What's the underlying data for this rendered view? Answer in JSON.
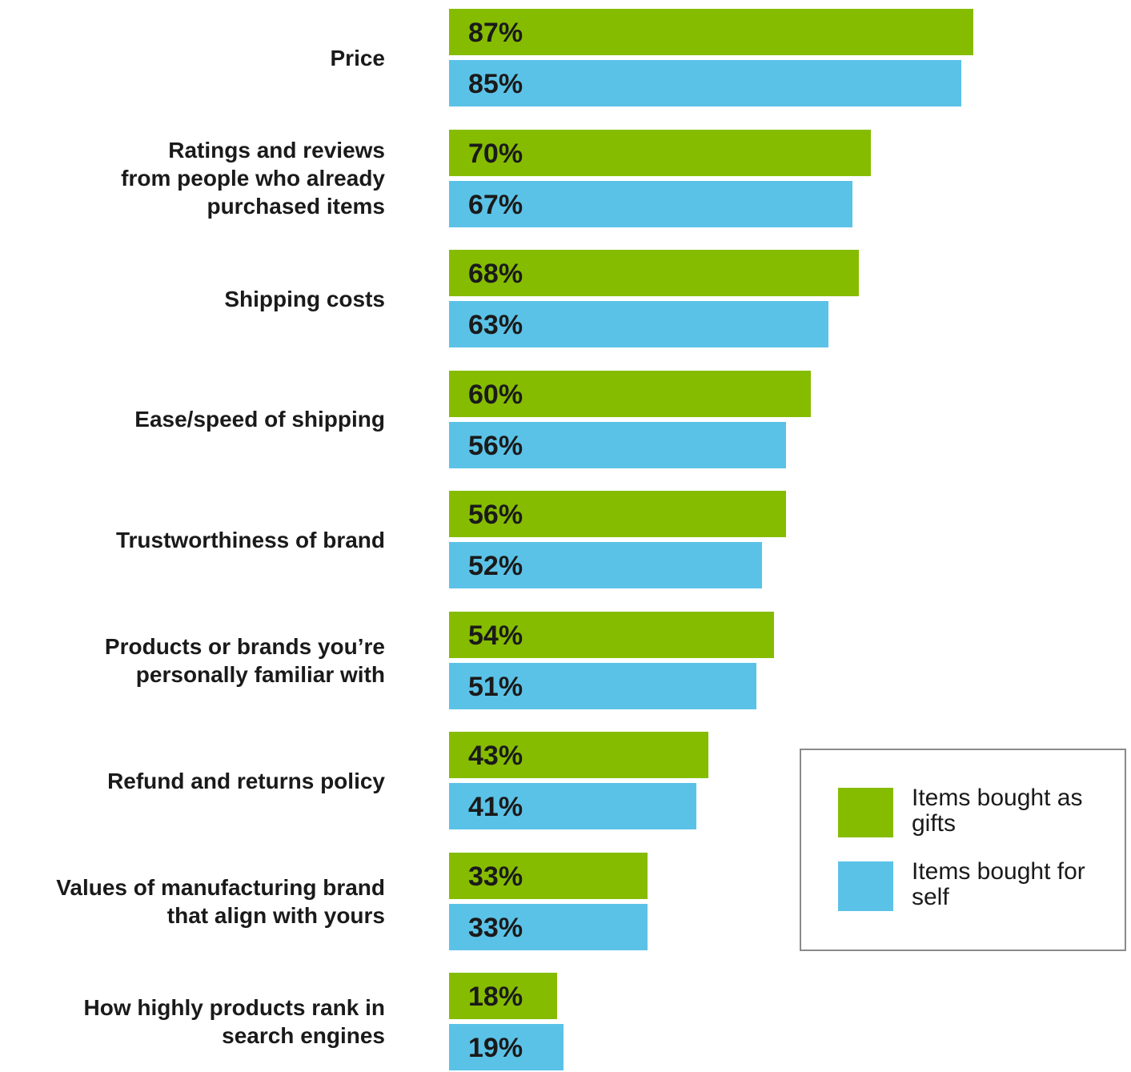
{
  "chart_data": {
    "type": "bar",
    "orientation": "horizontal",
    "title": "",
    "xlabel": "",
    "ylabel": "",
    "xlim": [
      0,
      100
    ],
    "grid": false,
    "legend_position": "bottom-right",
    "categories": [
      "Price",
      "Ratings and reviews\nfrom people who already\npurchased items",
      "Shipping costs",
      "Ease/speed of shipping",
      "Trustworthiness of brand",
      "Products or brands you’re\npersonally familiar with",
      "Refund and returns policy",
      "Values of manufacturing brand\nthat align with yours",
      "How highly products rank in\nsearch engines"
    ],
    "series": [
      {
        "name": "Items bought as gifts",
        "color": "#86bc00",
        "values": [
          87,
          70,
          68,
          60,
          56,
          54,
          43,
          33,
          18
        ],
        "labels": [
          "87%",
          "70%",
          "68%",
          "60%",
          "56%",
          "54%",
          "43%",
          "33%",
          "18%"
        ]
      },
      {
        "name": "Items bought for self",
        "color": "#5bc2e7",
        "values": [
          85,
          67,
          63,
          56,
          52,
          51,
          41,
          33,
          19
        ],
        "labels": [
          "85%",
          "67%",
          "63%",
          "56%",
          "52%",
          "51%",
          "41%",
          "33%",
          "19%"
        ]
      }
    ]
  }
}
